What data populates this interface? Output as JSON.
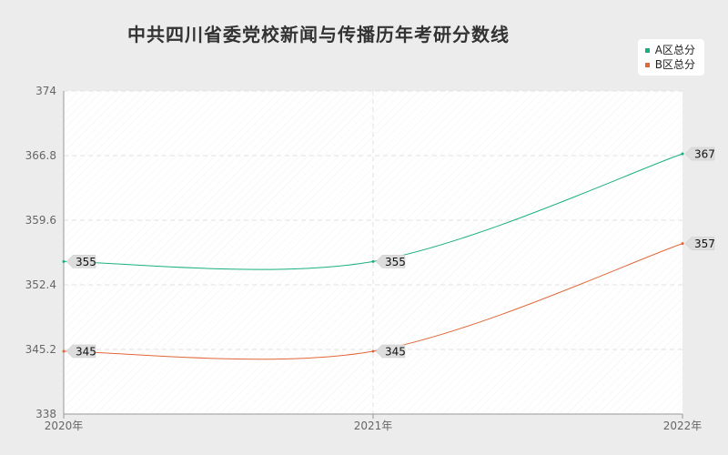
{
  "title": "中共四川省委党校新闻与传播历年考研分数线",
  "chart_data": {
    "type": "line",
    "title": "中共四川省委党校新闻与传播历年考研分数线",
    "categories": [
      "2020年",
      "2021年",
      "2022年"
    ],
    "series": [
      {
        "name": "A区总分",
        "values": [
          355,
          355,
          367
        ],
        "color": "#1aaf82"
      },
      {
        "name": "B区总分",
        "values": [
          345,
          345,
          357
        ],
        "color": "#e0683a"
      }
    ],
    "yticks": [
      "338",
      "345.2",
      "352.4",
      "359.6",
      "366.8",
      "374"
    ],
    "ylim": [
      338,
      374
    ],
    "xlabel": "",
    "ylabel": "",
    "grid": true,
    "legend": "top-right"
  }
}
